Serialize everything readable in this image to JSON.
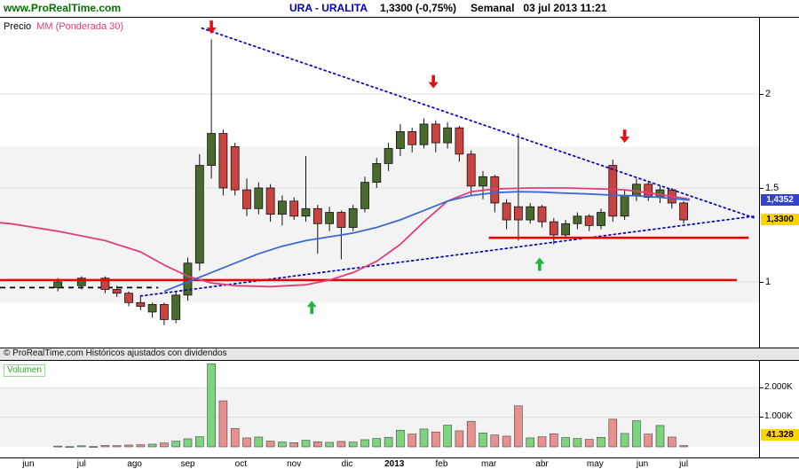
{
  "header": {
    "brand": "www.ProRealTime.com",
    "symbol": "URA - URALITA",
    "quote": "1,3300 (-0,75%)",
    "timeframe": "Semanal",
    "datetime": "03 jul 2013 11:21"
  },
  "price_panel": {
    "label": "Precio",
    "indicator": "MM (Ponderada 30)",
    "ticks": [
      {
        "label": "2",
        "value": 2
      },
      {
        "label": "1.5",
        "value": 1.5
      },
      {
        "label": "1",
        "value": 1
      }
    ],
    "blue_box": "1,4352",
    "yellow_box": "1,3300"
  },
  "footer_note": "© ProRealTime.com  Históricos ajustados con dividendos",
  "volume_panel": {
    "label": "Volumen",
    "ticks": [
      {
        "label": "2.000K",
        "value": 2000
      },
      {
        "label": "1.000K",
        "value": 1000
      }
    ],
    "yellow_box": "41.328"
  },
  "x_axis": {
    "labels": [
      {
        "text": "jun",
        "week": 1.5
      },
      {
        "text": "jul",
        "week": 6
      },
      {
        "text": "ago",
        "week": 10.5
      },
      {
        "text": "sep",
        "week": 15
      },
      {
        "text": "oct",
        "week": 19.5
      },
      {
        "text": "nov",
        "week": 24
      },
      {
        "text": "dic",
        "week": 28.5
      },
      {
        "text": "2013",
        "week": 32.5,
        "bold": true
      },
      {
        "text": "feb",
        "week": 36.5
      },
      {
        "text": "mar",
        "week": 40.5
      },
      {
        "text": "abr",
        "week": 45
      },
      {
        "text": "may",
        "week": 49.5
      },
      {
        "text": "jun",
        "week": 53.5
      },
      {
        "text": "jul",
        "week": 57
      }
    ]
  },
  "colors": {
    "brand_green": "#007000",
    "title_blue": "#0000bb",
    "candle_up": "#4a6a2d",
    "candle_down": "#c94440",
    "vol_up": "#7cd47c",
    "vol_down": "#e89090",
    "mm_pink": "#e23d7b",
    "ma_blue": "#3a6ad4",
    "trend": "#0000bb",
    "support": "#e80000",
    "band": "#f3f3f3",
    "grid": "#e2e2e2",
    "box_blue": "#3344cc",
    "box_yellow": "#ffd300",
    "arrow_red": "#dd1111",
    "arrow_green": "#1db53e"
  },
  "chart_data": [
    {
      "type": "candlestick",
      "title": "Precio",
      "symbol": "URA - URALITA",
      "timeframe": "Semanal",
      "indicator": "MM (Ponderada 30)",
      "last_close": 1.33,
      "change_pct": -0.75,
      "ylim": [
        0.66,
        2.41
      ],
      "y_ticks": [
        1,
        1.5,
        2
      ],
      "x_categories_months": [
        "jun",
        "jul",
        "ago",
        "sep",
        "oct",
        "nov",
        "dic",
        "2013",
        "feb",
        "mar",
        "abr",
        "may",
        "jun",
        "jul"
      ],
      "band": [
        0.89,
        1.72
      ],
      "flat_line": {
        "price": 0.97,
        "from_week": -0.9,
        "to_week": 12.5
      },
      "candles": [
        [
          0.97,
          0.97,
          0.97,
          0.97
        ],
        [
          0.97,
          0.97,
          0.97,
          0.97
        ],
        [
          0.97,
          0.97,
          0.97,
          0.97
        ],
        [
          0.97,
          0.97,
          0.97,
          0.97
        ],
        [
          0.97,
          1.02,
          0.95,
          1.0
        ],
        [
          0.97,
          0.97,
          0.97,
          0.97
        ],
        [
          0.98,
          1.03,
          0.96,
          1.02
        ],
        [
          0.97,
          0.97,
          0.97,
          0.97
        ],
        [
          1.02,
          1.03,
          0.94,
          0.96
        ],
        [
          0.96,
          0.98,
          0.92,
          0.94
        ],
        [
          0.94,
          0.95,
          0.87,
          0.89
        ],
        [
          0.89,
          0.92,
          0.85,
          0.87
        ],
        [
          0.84,
          0.89,
          0.81,
          0.88
        ],
        [
          0.88,
          0.89,
          0.77,
          0.8
        ],
        [
          0.8,
          0.95,
          0.78,
          0.93
        ],
        [
          0.93,
          1.13,
          0.9,
          1.1
        ],
        [
          1.1,
          1.68,
          1.06,
          1.62
        ],
        [
          1.62,
          2.29,
          1.55,
          1.79
        ],
        [
          1.79,
          1.81,
          1.46,
          1.5
        ],
        [
          1.72,
          1.74,
          1.46,
          1.49
        ],
        [
          1.49,
          1.55,
          1.35,
          1.39
        ],
        [
          1.39,
          1.53,
          1.36,
          1.5
        ],
        [
          1.5,
          1.52,
          1.32,
          1.36
        ],
        [
          1.36,
          1.46,
          1.3,
          1.43
        ],
        [
          1.43,
          1.45,
          1.33,
          1.35
        ],
        [
          1.35,
          1.67,
          1.32,
          1.39
        ],
        [
          1.39,
          1.41,
          1.15,
          1.31
        ],
        [
          1.31,
          1.4,
          1.27,
          1.37
        ],
        [
          1.37,
          1.38,
          1.12,
          1.29
        ],
        [
          1.29,
          1.41,
          1.27,
          1.39
        ],
        [
          1.39,
          1.56,
          1.37,
          1.53
        ],
        [
          1.53,
          1.66,
          1.5,
          1.63
        ],
        [
          1.63,
          1.74,
          1.59,
          1.71
        ],
        [
          1.71,
          1.84,
          1.67,
          1.8
        ],
        [
          1.8,
          1.82,
          1.69,
          1.73
        ],
        [
          1.73,
          1.87,
          1.71,
          1.84
        ],
        [
          1.84,
          1.86,
          1.69,
          1.74
        ],
        [
          1.74,
          1.85,
          1.71,
          1.82
        ],
        [
          1.82,
          1.83,
          1.64,
          1.68
        ],
        [
          1.68,
          1.7,
          1.46,
          1.51
        ],
        [
          1.51,
          1.59,
          1.44,
          1.56
        ],
        [
          1.56,
          1.57,
          1.37,
          1.42
        ],
        [
          1.42,
          1.44,
          1.28,
          1.33
        ],
        [
          1.4,
          1.79,
          1.22,
          1.33
        ],
        [
          1.33,
          1.42,
          1.31,
          1.4
        ],
        [
          1.4,
          1.41,
          1.29,
          1.32
        ],
        [
          1.32,
          1.34,
          1.2,
          1.25
        ],
        [
          1.25,
          1.33,
          1.23,
          1.31
        ],
        [
          1.31,
          1.37,
          1.28,
          1.35
        ],
        [
          1.35,
          1.36,
          1.27,
          1.3
        ],
        [
          1.3,
          1.39,
          1.28,
          1.37
        ],
        [
          1.62,
          1.65,
          1.32,
          1.35
        ],
        [
          1.35,
          1.49,
          1.33,
          1.46
        ],
        [
          1.46,
          1.55,
          1.43,
          1.52
        ],
        [
          1.52,
          1.53,
          1.43,
          1.45
        ],
        [
          1.45,
          1.51,
          1.42,
          1.49
        ],
        [
          1.49,
          1.5,
          1.39,
          1.42
        ],
        [
          1.42,
          1.43,
          1.31,
          1.33
        ]
      ],
      "mm_ponderada30": [
        [
          -0.9,
          1.315
        ],
        [
          0,
          1.31
        ],
        [
          4,
          1.27
        ],
        [
          8,
          1.22
        ],
        [
          11,
          1.16
        ],
        [
          13,
          1.09
        ],
        [
          15,
          1.03
        ],
        [
          17,
          0.995
        ],
        [
          19,
          0.98
        ],
        [
          22,
          0.975
        ],
        [
          25,
          0.985
        ],
        [
          27,
          1.01
        ],
        [
          29,
          1.05
        ],
        [
          31,
          1.11
        ],
        [
          33,
          1.2
        ],
        [
          35,
          1.32
        ],
        [
          37,
          1.43
        ],
        [
          39,
          1.48
        ],
        [
          41,
          1.495
        ],
        [
          44,
          1.5
        ],
        [
          47,
          1.5
        ],
        [
          50,
          1.495
        ],
        [
          52,
          1.49
        ],
        [
          54,
          1.475
        ],
        [
          56,
          1.455
        ],
        [
          57.5,
          1.44
        ]
      ],
      "ma_blue": [
        [
          13,
          0.95
        ],
        [
          15,
          1.0
        ],
        [
          17,
          1.05
        ],
        [
          19,
          1.1
        ],
        [
          21,
          1.15
        ],
        [
          23,
          1.19
        ],
        [
          25,
          1.22
        ],
        [
          27,
          1.24
        ],
        [
          29,
          1.26
        ],
        [
          31,
          1.29
        ],
        [
          33,
          1.33
        ],
        [
          35,
          1.38
        ],
        [
          37,
          1.43
        ],
        [
          39,
          1.46
        ],
        [
          41,
          1.475
        ],
        [
          43,
          1.48
        ],
        [
          45,
          1.478
        ],
        [
          47,
          1.472
        ],
        [
          49,
          1.468
        ],
        [
          51,
          1.462
        ],
        [
          53,
          1.458
        ],
        [
          55,
          1.45
        ],
        [
          57.5,
          1.4352
        ]
      ],
      "trendlines": [
        {
          "from": [
            16.2,
            2.35
          ],
          "to": [
            63,
            1.34
          ]
        },
        {
          "from": [
            11,
            0.925
          ],
          "to": [
            63,
            1.35
          ]
        }
      ],
      "support_lines": [
        {
          "price": 1.01,
          "from_week": -0.9,
          "to_week": 61.5
        },
        {
          "price": 1.235,
          "from_week": 40.5,
          "to_week": 62.5
        }
      ],
      "arrows": [
        {
          "dir": "down",
          "week": 17,
          "price": 2.32
        },
        {
          "dir": "down",
          "week": 35.8,
          "price": 2.03
        },
        {
          "dir": "down",
          "week": 52,
          "price": 1.74
        },
        {
          "dir": "up",
          "week": 25.5,
          "price": 0.9
        },
        {
          "dir": "up",
          "week": 44.8,
          "price": 1.13
        }
      ],
      "last_labels": {
        "ma_blue": 1.4352,
        "close": 1.33
      }
    },
    {
      "type": "bar",
      "title": "Volumen",
      "unit": "K",
      "y_ticks": [
        1000,
        2000
      ],
      "last_value": 41.328,
      "values": [
        0,
        0,
        0,
        0,
        25,
        8,
        35,
        10,
        45,
        38,
        60,
        70,
        90,
        130,
        190,
        270,
        340,
        2800,
        1550,
        620,
        300,
        330,
        190,
        160,
        140,
        220,
        170,
        150,
        180,
        160,
        240,
        280,
        320,
        560,
        430,
        600,
        500,
        730,
        540,
        860,
        470,
        400,
        360,
        1380,
        300,
        340,
        440,
        310,
        280,
        250,
        320,
        930,
        450,
        880,
        430,
        720,
        330,
        41.328
      ]
    }
  ]
}
